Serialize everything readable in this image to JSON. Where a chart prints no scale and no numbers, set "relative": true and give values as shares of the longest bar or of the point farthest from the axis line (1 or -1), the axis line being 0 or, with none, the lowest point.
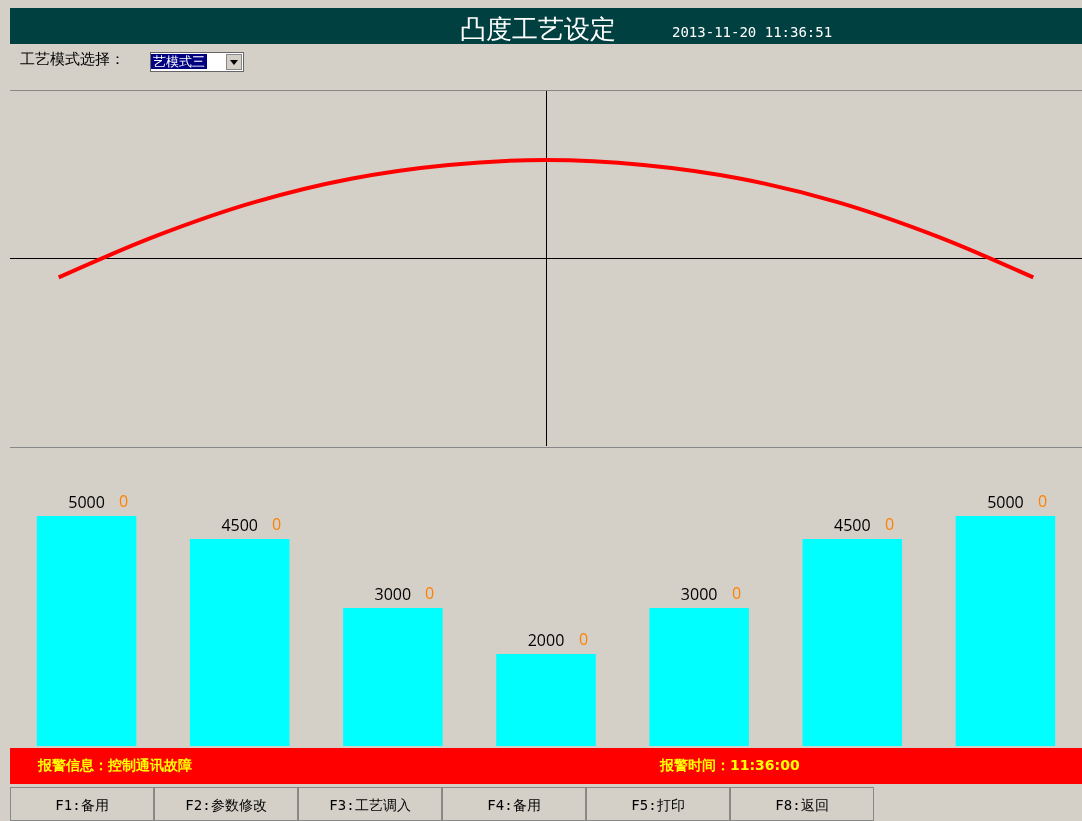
{
  "chart_data": [
    {
      "type": "line",
      "title": "凸度工艺设定",
      "subtitle": "2013-11-20 11:36:51",
      "relative": true,
      "categories": [
        null,
        null,
        null,
        null,
        null,
        null,
        null,
        null,
        null,
        null,
        null
      ],
      "series": [
        {
          "color": "#ff0000",
          "values": [
            -0.19,
            0.23,
            0.57,
            0.81,
            0.95,
            1,
            0.95,
            0.81,
            0.57,
            0.23,
            -0.19
          ]
        }
      ],
      "marker": "none",
      "line_style": "solid",
      "legend": false,
      "annotations": [
        "工艺模式选择：",
        "艺模式三",
        "报警信息：控制通讯故障",
        "报警时间：11:36:00",
        "F1:备用",
        "F2:参数修改",
        "F3:工艺调入",
        "F4:备用",
        "F5:打印",
        "F8:返回"
      ]
    },
    {
      "type": "bar",
      "categories": [
        null,
        null,
        null,
        null,
        null,
        null,
        null
      ],
      "series": [
        {
          "color": "#00ffff",
          "values": [
            5000,
            4500,
            3000,
            2000,
            3000,
            4500,
            5000
          ]
        }
      ],
      "data_labels": true,
      "legend": false,
      "annotations": [
        "0",
        "0",
        "0",
        "0",
        "0",
        "0",
        "0"
      ]
    }
  ]
}
